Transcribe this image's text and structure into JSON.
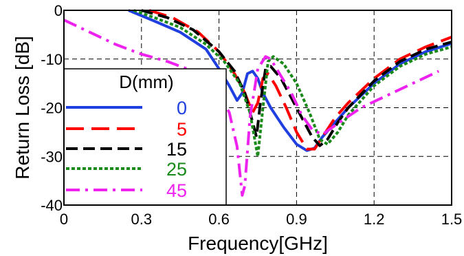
{
  "chart_data": {
    "type": "line",
    "xlabel": "Frequency[GHz]",
    "ylabel": "Return Loss [dB]",
    "xlim": [
      0,
      1.5
    ],
    "ylim": [
      -40,
      0
    ],
    "xticks": [
      "0",
      "0.3",
      "0.6",
      "0.9",
      "1.2",
      "1.5"
    ],
    "yticks": [
      "0",
      "-10",
      "-20",
      "-30",
      "-40"
    ],
    "xtick_values": [
      0,
      0.3,
      0.6,
      0.9,
      1.2,
      1.5
    ],
    "ytick_values": [
      0,
      -10,
      -20,
      -30,
      -40
    ],
    "grid": "dashed",
    "legend": {
      "title": "D(mm)",
      "placement": "bottom-left"
    },
    "series": [
      {
        "name": "0",
        "color": "#1f3fe0",
        "dash": "solid",
        "x": [
          0.25,
          0.35,
          0.45,
          0.55,
          0.6,
          0.64,
          0.67,
          0.69,
          0.71,
          0.73,
          0.75,
          0.77,
          0.8,
          0.85,
          0.9,
          0.94,
          0.97,
          1.0,
          1.05,
          1.1,
          1.2,
          1.3,
          1.4,
          1.5
        ],
        "y": [
          0,
          -2.2,
          -4.5,
          -8,
          -12,
          -15.5,
          -18.5,
          -17,
          -13,
          -12.5,
          -14,
          -17,
          -20,
          -24,
          -27.5,
          -28.8,
          -28.3,
          -26,
          -23,
          -20,
          -15,
          -11,
          -8.5,
          -6.8
        ]
      },
      {
        "name": "5",
        "color": "#ff0000",
        "dash": "longdash",
        "x": [
          0.33,
          0.42,
          0.52,
          0.6,
          0.66,
          0.7,
          0.73,
          0.75,
          0.77,
          0.79,
          0.82,
          0.86,
          0.9,
          0.94,
          0.97,
          1.0,
          1.05,
          1.1,
          1.2,
          1.3,
          1.4,
          1.5
        ],
        "y": [
          0,
          -1.5,
          -4.5,
          -8.5,
          -13,
          -17,
          -21,
          -19,
          -14,
          -13,
          -15.5,
          -20,
          -25,
          -28.5,
          -28.5,
          -26,
          -22,
          -19,
          -14,
          -10,
          -7.5,
          -5.5
        ]
      },
      {
        "name": "15",
        "color": "#000000",
        "dash": "dash",
        "x": [
          0.3,
          0.4,
          0.5,
          0.6,
          0.66,
          0.7,
          0.73,
          0.745,
          0.76,
          0.78,
          0.8,
          0.84,
          0.88,
          0.92,
          0.96,
          0.99,
          1.02,
          1.06,
          1.1,
          1.2,
          1.3,
          1.4,
          1.5
        ],
        "y": [
          0,
          -1.5,
          -4,
          -8.5,
          -12.5,
          -17,
          -23,
          -26,
          -19,
          -12,
          -11.5,
          -14,
          -18,
          -22,
          -26,
          -27.8,
          -26.5,
          -23,
          -20,
          -14.5,
          -10.5,
          -8,
          -6.5
        ]
      },
      {
        "name": "25",
        "color": "#1a8a1a",
        "dash": "dot",
        "x": [
          0.27,
          0.35,
          0.45,
          0.55,
          0.62,
          0.68,
          0.72,
          0.75,
          0.77,
          0.79,
          0.81,
          0.85,
          0.9,
          0.95,
          0.99,
          1.02,
          1.06,
          1.1,
          1.2,
          1.3,
          1.4,
          1.5
        ],
        "y": [
          0,
          -1.5,
          -3.5,
          -7,
          -10.5,
          -15,
          -21,
          -30,
          -20,
          -10.5,
          -9.5,
          -11,
          -15,
          -21,
          -26.5,
          -27.5,
          -25,
          -21.5,
          -15.5,
          -11.5,
          -9,
          -7.5
        ]
      },
      {
        "name": "45",
        "color": "#ee22ee",
        "dash": "dashdot",
        "x": [
          0,
          0.1,
          0.2,
          0.3,
          0.4,
          0.5,
          0.55,
          0.6,
          0.64,
          0.67,
          0.69,
          0.7,
          0.72,
          0.75,
          0.78,
          0.8,
          0.84,
          0.88,
          0.92,
          0.96,
          1.0,
          1.04,
          1.08,
          1.15,
          1.25,
          1.35,
          1.45
        ],
        "y": [
          -2,
          -4.5,
          -7,
          -9,
          -10.5,
          -12.5,
          -14,
          -17,
          -21,
          -28,
          -38,
          -36,
          -22,
          -12,
          -9.5,
          -10,
          -13.5,
          -17,
          -21.5,
          -24.5,
          -25.5,
          -24,
          -22.5,
          -20,
          -17.5,
          -15,
          -12.5
        ]
      }
    ]
  }
}
